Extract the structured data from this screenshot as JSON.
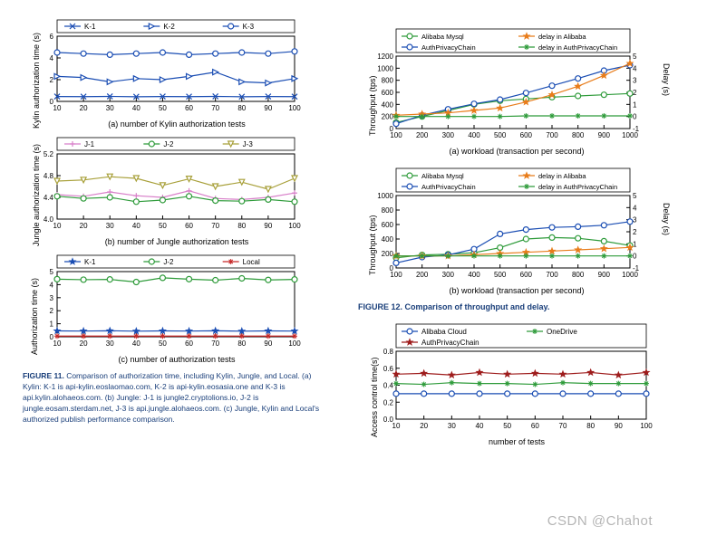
{
  "colors": {
    "blue": "#1a4db3",
    "green": "#2e9b3a",
    "olive": "#a8a03a",
    "orange": "#e87c1a",
    "red": "#c62828",
    "pink": "#d87fc9",
    "star_red": "#9e1c1c",
    "caption_blue": "#1a3f7a",
    "axis": "#000000",
    "bg": "#ffffff"
  },
  "fig11": {
    "a": {
      "ylabel": "Kylin authorization time (s)",
      "xlabel": "(a) number of Kylin authorization tests",
      "xlim": [
        10,
        100
      ],
      "xtick_step": 10,
      "ylim": [
        0,
        6
      ],
      "ytick_step": 2,
      "legend": [
        "K-1",
        "K-2",
        "K-3"
      ],
      "legend_colors": [
        "#1a4db3",
        "#1a4db3",
        "#1a4db3"
      ],
      "legend_markers": [
        "x",
        "triangle-right",
        "circle"
      ],
      "series": {
        "K-1": {
          "x": [
            10,
            20,
            30,
            40,
            50,
            60,
            70,
            80,
            90,
            100
          ],
          "y": [
            0.45,
            0.44,
            0.46,
            0.43,
            0.45,
            0.44,
            0.46,
            0.43,
            0.45,
            0.44
          ],
          "color": "#1a4db3",
          "marker": "x"
        },
        "K-2": {
          "x": [
            10,
            20,
            30,
            40,
            50,
            60,
            70,
            80,
            90,
            100
          ],
          "y": [
            2.3,
            2.2,
            1.8,
            2.1,
            2.0,
            2.3,
            2.7,
            1.8,
            1.7,
            2.1
          ],
          "color": "#1a4db3",
          "marker": "triangle-right"
        },
        "K-3": {
          "x": [
            10,
            20,
            30,
            40,
            50,
            60,
            70,
            80,
            90,
            100
          ],
          "y": [
            4.5,
            4.4,
            4.3,
            4.4,
            4.5,
            4.3,
            4.4,
            4.5,
            4.4,
            4.6
          ],
          "color": "#1a4db3",
          "marker": "circle"
        }
      }
    },
    "b": {
      "ylabel": "Jungle authorization time (s)",
      "xlabel": "(b) number of Jungle authorization tests",
      "xlim": [
        10,
        100
      ],
      "xtick_step": 10,
      "ylim": [
        4.0,
        5.2
      ],
      "ytick_step": 0.4,
      "legend": [
        "J-1",
        "J-2",
        "J-3"
      ],
      "legend_colors": [
        "#d87fc9",
        "#2e9b3a",
        "#a8a03a"
      ],
      "legend_markers": [
        "plus",
        "circle",
        "triangle-down"
      ],
      "series": {
        "J-1": {
          "x": [
            10,
            20,
            30,
            40,
            50,
            60,
            70,
            80,
            90,
            100
          ],
          "y": [
            4.45,
            4.42,
            4.5,
            4.43,
            4.4,
            4.52,
            4.38,
            4.36,
            4.4,
            4.48
          ],
          "color": "#d87fc9",
          "marker": "plus"
        },
        "J-2": {
          "x": [
            10,
            20,
            30,
            40,
            50,
            60,
            70,
            80,
            90,
            100
          ],
          "y": [
            4.42,
            4.38,
            4.4,
            4.32,
            4.35,
            4.42,
            4.34,
            4.33,
            4.36,
            4.32
          ],
          "color": "#2e9b3a",
          "marker": "circle"
        },
        "J-3": {
          "x": [
            10,
            20,
            30,
            40,
            50,
            60,
            70,
            80,
            90,
            100
          ],
          "y": [
            4.7,
            4.72,
            4.78,
            4.75,
            4.62,
            4.74,
            4.6,
            4.68,
            4.55,
            4.75
          ],
          "color": "#a8a03a",
          "marker": "triangle-down"
        }
      }
    },
    "c": {
      "ylabel": "Authorization time (s)",
      "xlabel": "(c) number of authorization tests",
      "xlim": [
        10,
        100
      ],
      "xtick_step": 10,
      "ylim": [
        0,
        5
      ],
      "ytick_step": 1,
      "legend": [
        "K-1",
        "J-2",
        "Local"
      ],
      "legend_colors": [
        "#1a4db3",
        "#2e9b3a",
        "#c62828"
      ],
      "legend_markers": [
        "star",
        "circle",
        "asterisk"
      ],
      "series": {
        "K-1": {
          "x": [
            10,
            20,
            30,
            40,
            50,
            60,
            70,
            80,
            90,
            100
          ],
          "y": [
            0.45,
            0.44,
            0.46,
            0.43,
            0.45,
            0.44,
            0.46,
            0.43,
            0.45,
            0.44
          ],
          "color": "#1a4db3",
          "marker": "star"
        },
        "J-2": {
          "x": [
            10,
            20,
            30,
            40,
            50,
            60,
            70,
            80,
            90,
            100
          ],
          "y": [
            4.42,
            4.38,
            4.4,
            4.2,
            4.52,
            4.42,
            4.34,
            4.48,
            4.36,
            4.4
          ],
          "color": "#2e9b3a",
          "marker": "circle"
        },
        "Local": {
          "x": [
            10,
            20,
            30,
            40,
            50,
            60,
            70,
            80,
            90,
            100
          ],
          "y": [
            0.05,
            0.05,
            0.05,
            0.05,
            0.05,
            0.05,
            0.05,
            0.05,
            0.05,
            0.05
          ],
          "color": "#c62828",
          "marker": "asterisk"
        }
      }
    },
    "caption_bold": "FIGURE 11.",
    "caption": " Comparison of authorization time, including Kylin, Jungle, and Local. (a) Kylin: K-1 is api-kylin.eoslaomao.com, K-2 is api-kylin.eosasia.one and  K-3 is api.kylin.alohaeos.com. (b) Jungle: J-1 is jungle2.cryptolions.io, J-2 is jungle.eosam.sterdam.net, J-3 is api.jungle.alohaeos.com. (c) Jungle, Kylin and Local's authorized publish performance comparison."
  },
  "fig12": {
    "a": {
      "ylabel_left": "Throughput (tps)",
      "ylabel_right": "Delay (s)",
      "xlabel": "(a) workload (transaction per second)",
      "xlim": [
        100,
        1000
      ],
      "xtick_step": 100,
      "ylim_left": [
        0,
        1200
      ],
      "ytick_left_step": 200,
      "ylim_right": [
        -1,
        5
      ],
      "ytick_right_step": 1,
      "legend": [
        "Alibaba Mysql",
        "delay in Alibaba",
        "AuthPrivacyChain",
        "delay in AuthPrivacyChain"
      ],
      "legend_colors": [
        "#2e9b3a",
        "#e87c1a",
        "#1a4db3",
        "#2e9b3a"
      ],
      "legend_markers": [
        "circle",
        "star",
        "circle",
        "asterisk"
      ],
      "series": {
        "Alibaba Mysql": {
          "axis": "left",
          "x": [
            100,
            200,
            300,
            400,
            500,
            600,
            700,
            800,
            900,
            1000
          ],
          "y": [
            100,
            200,
            300,
            400,
            460,
            490,
            520,
            540,
            560,
            580
          ],
          "color": "#2e9b3a",
          "marker": "circle"
        },
        "AuthPrivacyChain": {
          "axis": "left",
          "x": [
            100,
            200,
            300,
            400,
            500,
            600,
            700,
            800,
            900,
            1000
          ],
          "y": [
            80,
            220,
            320,
            410,
            480,
            590,
            710,
            830,
            960,
            1050
          ],
          "color": "#1a4db3",
          "marker": "circle"
        },
        "delay in Alibaba": {
          "axis": "right",
          "x": [
            100,
            200,
            300,
            400,
            500,
            600,
            700,
            800,
            900,
            1000
          ],
          "y": [
            0.1,
            0.2,
            0.3,
            0.5,
            0.7,
            1.2,
            1.8,
            2.5,
            3.4,
            4.4
          ],
          "color": "#e87c1a",
          "marker": "star"
        },
        "delay in AuthPrivacyChain": {
          "axis": "right",
          "x": [
            100,
            200,
            300,
            400,
            500,
            600,
            700,
            800,
            900,
            1000
          ],
          "y": [
            0.0,
            0.0,
            0.0,
            0.0,
            0.0,
            0.05,
            0.05,
            0.05,
            0.05,
            0.05
          ],
          "color": "#2e9b3a",
          "marker": "asterisk"
        }
      }
    },
    "b": {
      "ylabel_left": "Throughput (tps)",
      "ylabel_right": "Delay (s)",
      "xlabel": "(b) workload (transaction per second)",
      "xlim": [
        100,
        1000
      ],
      "xtick_step": 100,
      "ylim_left": [
        0,
        1000
      ],
      "ytick_left_step": 200,
      "ylim_right": [
        -1,
        5
      ],
      "ytick_right_step": 1,
      "legend": [
        "Alibaba Mysql",
        "delay in Alibaba",
        "AuthPrivacyChain",
        "delay in AuthPrivacyChain"
      ],
      "legend_colors": [
        "#2e9b3a",
        "#e87c1a",
        "#1a4db3",
        "#2e9b3a"
      ],
      "legend_markers": [
        "circle",
        "star",
        "circle",
        "asterisk"
      ],
      "series": {
        "Alibaba Mysql": {
          "axis": "left",
          "x": [
            100,
            200,
            300,
            400,
            500,
            600,
            700,
            800,
            900,
            1000
          ],
          "y": [
            140,
            180,
            190,
            210,
            280,
            400,
            420,
            410,
            370,
            310
          ],
          "color": "#2e9b3a",
          "marker": "circle"
        },
        "AuthPrivacyChain": {
          "axis": "left",
          "x": [
            100,
            200,
            300,
            400,
            500,
            600,
            700,
            800,
            900,
            1000
          ],
          "y": [
            70,
            150,
            180,
            260,
            470,
            530,
            560,
            570,
            590,
            640
          ],
          "color": "#1a4db3",
          "marker": "circle"
        },
        "delay in Alibaba": {
          "axis": "right",
          "x": [
            100,
            200,
            300,
            400,
            500,
            600,
            700,
            800,
            900,
            1000
          ],
          "y": [
            0.0,
            0.0,
            0.0,
            0.1,
            0.2,
            0.3,
            0.4,
            0.5,
            0.6,
            0.7
          ],
          "color": "#e87c1a",
          "marker": "star"
        },
        "delay in AuthPrivacyChain": {
          "axis": "right",
          "x": [
            100,
            200,
            300,
            400,
            500,
            600,
            700,
            800,
            900,
            1000
          ],
          "y": [
            0.0,
            0.0,
            0.0,
            0.0,
            0.0,
            0.0,
            0.0,
            0.0,
            0.0,
            0.0
          ],
          "color": "#2e9b3a",
          "marker": "asterisk"
        }
      }
    },
    "title_bold": "FIGURE 12.",
    "title": " Comparison of throughput and delay."
  },
  "fig13": {
    "ylabel": "Access control time(s)",
    "xlabel": "number of tests",
    "xlim": [
      10,
      100
    ],
    "xtick_step": 10,
    "ylim": [
      0,
      0.8
    ],
    "ytick_step": 0.2,
    "legend": [
      "Alibaba Cloud",
      "OneDrive",
      "AuthPrivacyChain"
    ],
    "legend_colors": [
      "#1a4db3",
      "#2e9b3a",
      "#9e1c1c"
    ],
    "legend_markers": [
      "circle",
      "asterisk",
      "star"
    ],
    "series": {
      "Alibaba Cloud": {
        "x": [
          10,
          20,
          30,
          40,
          50,
          60,
          70,
          80,
          90,
          100
        ],
        "y": [
          0.3,
          0.3,
          0.3,
          0.3,
          0.3,
          0.3,
          0.3,
          0.3,
          0.3,
          0.3
        ],
        "color": "#1a4db3",
        "marker": "circle"
      },
      "OneDrive": {
        "x": [
          10,
          20,
          30,
          40,
          50,
          60,
          70,
          80,
          90,
          100
        ],
        "y": [
          0.42,
          0.41,
          0.43,
          0.42,
          0.42,
          0.41,
          0.43,
          0.42,
          0.42,
          0.42
        ],
        "color": "#2e9b3a",
        "marker": "asterisk"
      },
      "AuthPrivacyChain": {
        "x": [
          10,
          20,
          30,
          40,
          50,
          60,
          70,
          80,
          90,
          100
        ],
        "y": [
          0.53,
          0.54,
          0.52,
          0.55,
          0.53,
          0.54,
          0.53,
          0.55,
          0.52,
          0.55
        ],
        "color": "#9e1c1c",
        "marker": "star"
      }
    }
  },
  "watermark": "CSDN @Chahot"
}
